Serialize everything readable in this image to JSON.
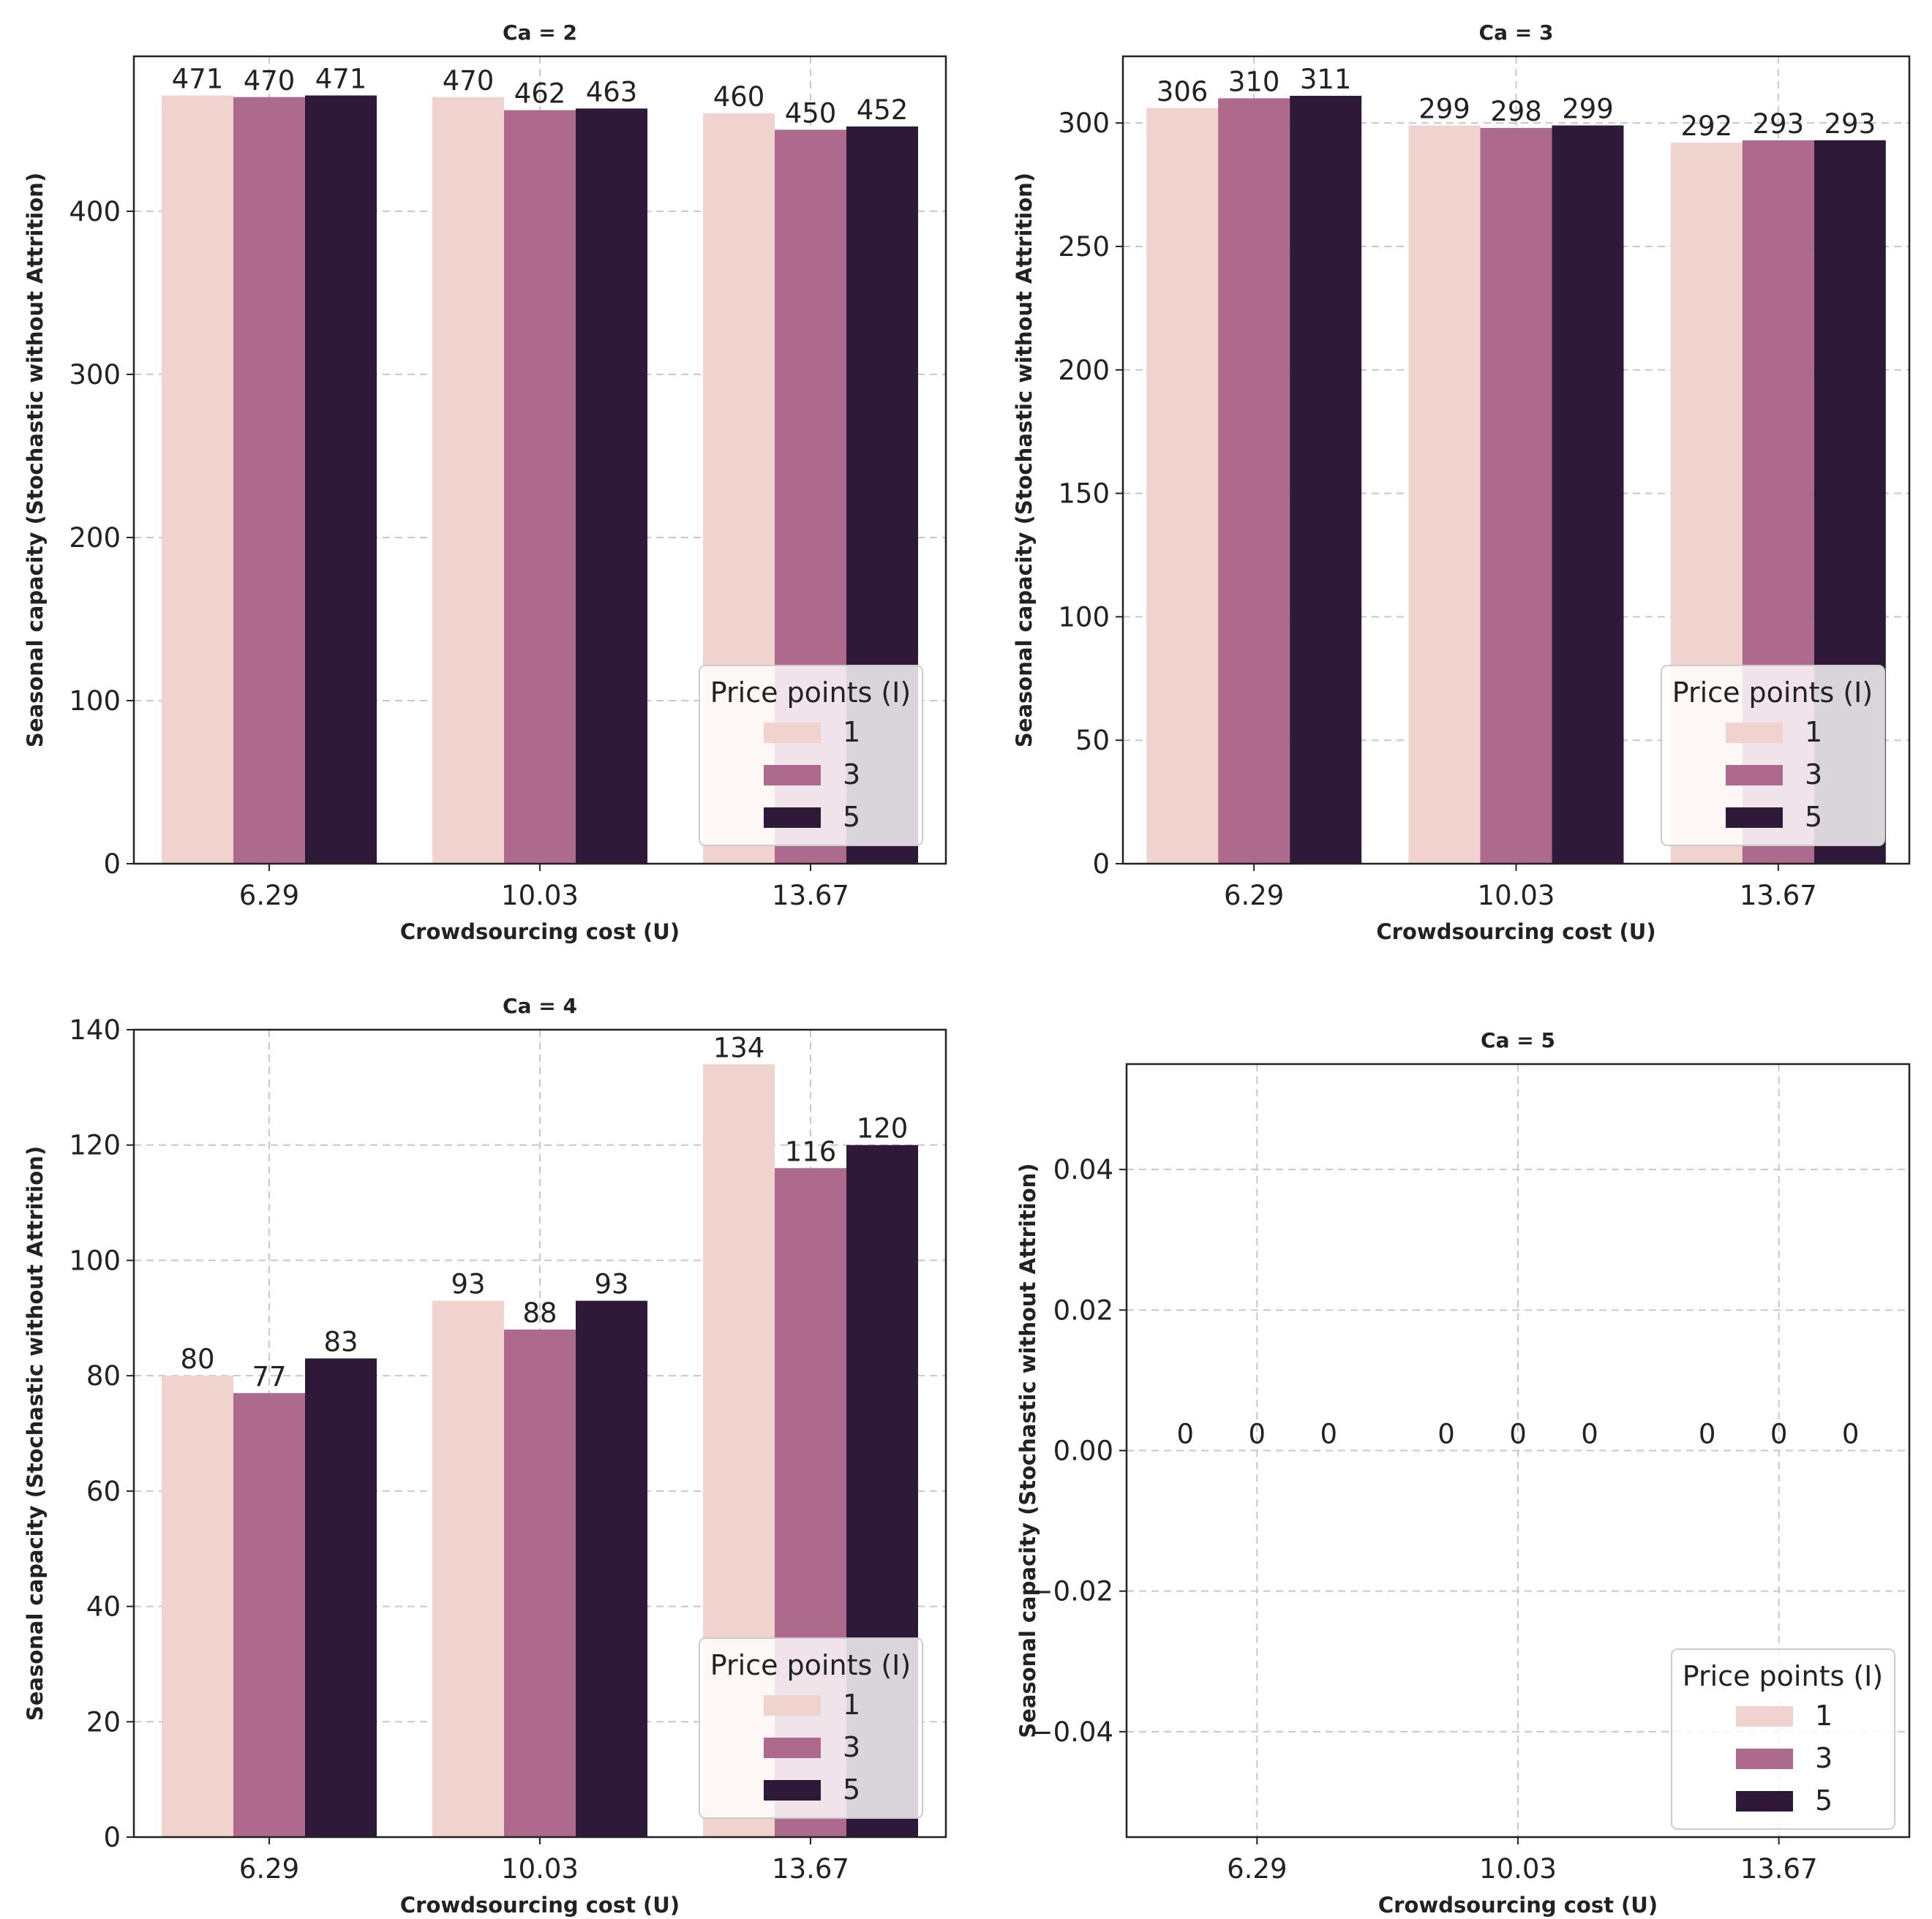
{
  "figure": {
    "legend_title": "Price points (I)",
    "xlabel": "Crowdsourcing cost (U)",
    "ylabel": "Seasonal capacity (Stochastic without Attrition)",
    "series_names": [
      "1",
      "3",
      "5"
    ],
    "colors": [
      "#f0d3ce",
      "#ad6a8c",
      "#2e1a38"
    ]
  },
  "chart_data": [
    {
      "type": "bar",
      "title": "Ca = 2",
      "xlabel": "Crowdsourcing cost (U)",
      "ylabel": "Seasonal capacity (Stochastic without Attrition)",
      "categories": [
        "6.29",
        "10.03",
        "13.67"
      ],
      "series": [
        {
          "name": "1",
          "values": [
            471,
            470,
            460
          ]
        },
        {
          "name": "3",
          "values": [
            470,
            462,
            450
          ]
        },
        {
          "name": "5",
          "values": [
            471,
            463,
            452
          ]
        }
      ],
      "value_labels": [
        [
          "471",
          "470",
          "460"
        ],
        [
          "470",
          "462",
          "450"
        ],
        [
          "471",
          "463",
          "452"
        ]
      ],
      "ylim": [
        0,
        495
      ],
      "yticks": [
        0,
        100,
        200,
        300,
        400
      ],
      "ytick_labels": [
        "0",
        "100",
        "200",
        "300",
        "400"
      ],
      "grid": true,
      "legend_position": "lower-right"
    },
    {
      "type": "bar",
      "title": "Ca = 3",
      "xlabel": "Crowdsourcing cost (U)",
      "ylabel": "Seasonal capacity (Stochastic without Attrition)",
      "categories": [
        "6.29",
        "10.03",
        "13.67"
      ],
      "series": [
        {
          "name": "1",
          "values": [
            306,
            299,
            292
          ]
        },
        {
          "name": "3",
          "values": [
            310,
            298,
            293
          ]
        },
        {
          "name": "5",
          "values": [
            311,
            299,
            293
          ]
        }
      ],
      "value_labels": [
        [
          "306",
          "299",
          "292"
        ],
        [
          "310",
          "298",
          "293"
        ],
        [
          "311",
          "299",
          "293"
        ]
      ],
      "ylim": [
        0,
        327
      ],
      "yticks": [
        0,
        50,
        100,
        150,
        200,
        250,
        300
      ],
      "ytick_labels": [
        "0",
        "50",
        "100",
        "150",
        "200",
        "250",
        "300"
      ],
      "grid": true,
      "legend_position": "lower-right"
    },
    {
      "type": "bar",
      "title": "Ca = 4",
      "xlabel": "Crowdsourcing cost (U)",
      "ylabel": "Seasonal capacity (Stochastic without Attrition)",
      "categories": [
        "6.29",
        "10.03",
        "13.67"
      ],
      "series": [
        {
          "name": "1",
          "values": [
            80,
            93,
            134
          ]
        },
        {
          "name": "3",
          "values": [
            77,
            88,
            116
          ]
        },
        {
          "name": "5",
          "values": [
            83,
            93,
            120
          ]
        }
      ],
      "value_labels": [
        [
          "80",
          "93",
          "134"
        ],
        [
          "77",
          "88",
          "116"
        ],
        [
          "83",
          "93",
          "120"
        ]
      ],
      "ylim": [
        0,
        140
      ],
      "yticks": [
        0,
        20,
        40,
        60,
        80,
        100,
        120,
        140
      ],
      "ytick_labels": [
        "0",
        "20",
        "40",
        "60",
        "80",
        "100",
        "120",
        "140"
      ],
      "grid": true,
      "legend_position": "lower-right"
    },
    {
      "type": "bar",
      "title": "Ca = 5",
      "xlabel": "Crowdsourcing cost (U)",
      "ylabel": "Seasonal capacity (Stochastic without Attrition)",
      "categories": [
        "6.29",
        "10.03",
        "13.67"
      ],
      "series": [
        {
          "name": "1",
          "values": [
            0,
            0,
            0
          ]
        },
        {
          "name": "3",
          "values": [
            0,
            0,
            0
          ]
        },
        {
          "name": "5",
          "values": [
            0,
            0,
            0
          ]
        }
      ],
      "value_labels": [
        [
          "0",
          "0",
          "0"
        ],
        [
          "0",
          "0",
          "0"
        ],
        [
          "0",
          "0",
          "0"
        ]
      ],
      "ylim": [
        -0.055,
        0.055
      ],
      "yticks": [
        -0.04,
        -0.02,
        0.0,
        0.02,
        0.04
      ],
      "ytick_labels": [
        "−0.04",
        "−0.02",
        "0.00",
        "0.02",
        "0.04"
      ],
      "grid": true,
      "legend_position": "lower-right"
    }
  ]
}
